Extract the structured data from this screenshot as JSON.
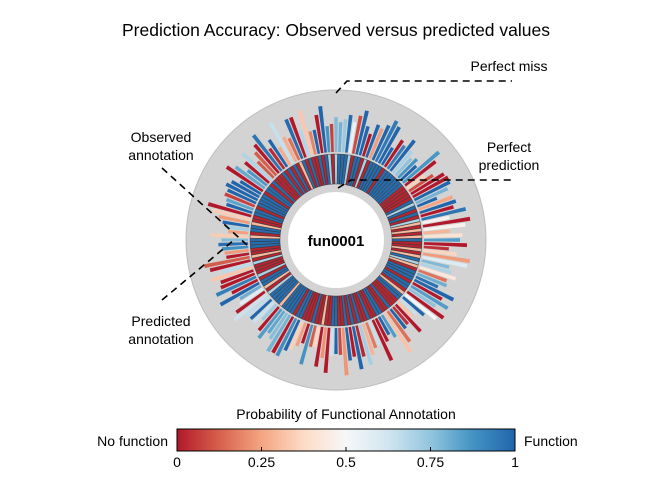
{
  "chart_data": {
    "type": "radial-bar",
    "title": "Prediction Accuracy: Observed versus predicted values",
    "center_label": "fun0001",
    "annotations": {
      "perfect_miss": "Perfect miss",
      "perfect_prediction": [
        "Perfect",
        "prediction"
      ],
      "observed": [
        "Observed",
        "annotation"
      ],
      "predicted": [
        "Predicted",
        "annotation"
      ]
    },
    "colorbar": {
      "title": "Probability of Functional Annotation",
      "left_label": "No function",
      "right_label": "Function",
      "ticks": [
        "0",
        "0.25",
        "0.5",
        "0.75",
        "1"
      ],
      "tick_values": [
        0,
        0.25,
        0.5,
        0.75,
        1
      ],
      "colors": [
        "#b2182b",
        "#d6604d",
        "#f4a582",
        "#fddbc7",
        "#f7f7f7",
        "#d1e5f0",
        "#92c5de",
        "#4393c3",
        "#2166ac"
      ]
    },
    "n_samples": 160,
    "colors": {
      "accuracy_disk": "#d3d3d3",
      "accuracy_disk_border": "#b8b8b8"
    }
  }
}
